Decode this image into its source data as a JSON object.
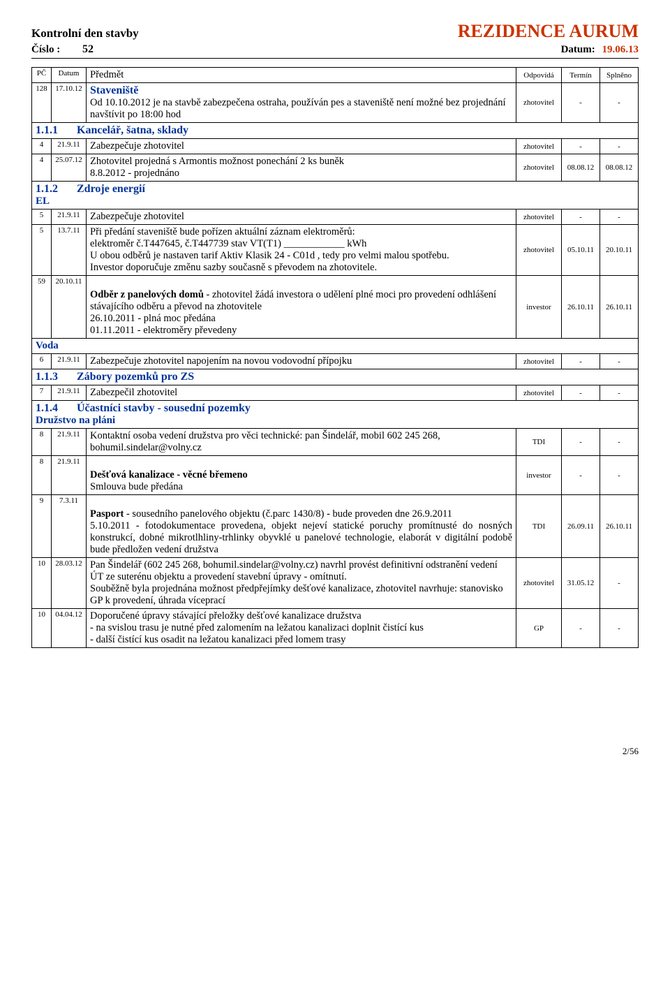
{
  "header": {
    "title_left": "Kontrolní den stavby",
    "title_right": "REZIDENCE AURUM",
    "cislo_label": "Číslo :",
    "cislo": "52",
    "datum_label": "Datum:",
    "datum": "19.06.13"
  },
  "colors": {
    "accent": "#cc3300",
    "section": "#003399"
  },
  "th": {
    "pc": "PČ",
    "datum": "Datum",
    "predmet": "Předmět",
    "odpovida": "Odpovídá",
    "termin": "Termín",
    "splneno": "Splněno"
  },
  "sections": {
    "staveniste": "Staveniště",
    "s111": "Kancelář, šatna, sklady",
    "s111_num": "1.1.1",
    "s112": "Zdroje energií",
    "s112_num": "1.1.2",
    "el": "EL",
    "voda": "Voda",
    "s113": "Zábory pozemků pro ZS",
    "s113_num": "1.1.3",
    "s114": "Účastníci stavby - sousední pozemky",
    "s114_num": "1.1.4",
    "druzstvo": "Družstvo na pláni"
  },
  "rows": {
    "r128": {
      "pc": "128",
      "datum": "17.10.12",
      "text": "Od 10.10.2012 je na stavbě zabezpečena ostraha, používán pes a staveniště není možné bez projednání navštívit po 18:00 hod",
      "odp": "zhotovitel",
      "term": "-",
      "spl": "-"
    },
    "r4a": {
      "pc": "4",
      "datum": "21.9.11",
      "text": "Zabezpečuje zhotovitel",
      "odp": "zhotovitel",
      "term": "-",
      "spl": "-"
    },
    "r4b": {
      "pc": "4",
      "datum": "25.07.12",
      "text": "Zhotovitel projedná s Armontis možnost ponechání 2 ks buněk\n8.8.2012 - projednáno",
      "odp": "zhotovitel",
      "term": "08.08.12",
      "spl": "08.08.12"
    },
    "r5a": {
      "pc": "5",
      "datum": "21.9.11",
      "text": "Zabezpečuje zhotovitel",
      "odp": "zhotovitel",
      "term": "-",
      "spl": "-"
    },
    "r5b": {
      "pc": "5",
      "datum": "13.7.11",
      "text": "Při předání staveniště bude pořízen aktuální záznam elektroměrů:\nelektroměr č.T447645, č.T447739       stav VT(T1) ____________ kWh\nU obou odběrů je nastaven tarif Aktiv Klasik 24 - C01d , tedy pro velmi malou spotřebu.\nInvestor doporučuje změnu sazby současně s převodem na zhotovitele.",
      "odp": "zhotovitel",
      "term": "05.10.11",
      "spl": "20.10.11"
    },
    "r59": {
      "pc": "59",
      "datum": "20.10.11",
      "text_bold": "Odběr z panelových domů",
      "text_rest": " - zhotovitel žádá investora o udělení plné moci pro provedení odhlášení stávajícího odběru a převod na zhotovitele\n26.10.2011 - plná moc předána\n01.11.2011 - elektroměry převedeny",
      "odp": "investor",
      "term": "26.10.11",
      "spl": "26.10.11"
    },
    "r6": {
      "pc": "6",
      "datum": "21.9.11",
      "text": "Zabezpečuje zhotovitel napojením na novou vodovodní přípojku",
      "odp": "zhotovitel",
      "term": "-",
      "spl": "-"
    },
    "r7": {
      "pc": "7",
      "datum": "21.9.11",
      "text": "Zabezpečil zhotovitel",
      "odp": "zhotovitel",
      "term": "-",
      "spl": "-"
    },
    "r8a": {
      "pc": "8",
      "datum": "21.9.11",
      "text": "Kontaktní osoba vedení družstva pro věci technické:  pan Šindelář, mobil 602 245 268, bohumil.sindelar@volny.cz",
      "odp": "TDI",
      "term": "-",
      "spl": "-"
    },
    "r8b": {
      "pc": "8",
      "datum": "21.9.11",
      "text_bold": "Dešťová kanalizace - věcné břemeno",
      "text_rest": "\nSmlouva bude předána",
      "odp": "investor",
      "term": "-",
      "spl": "-"
    },
    "r9": {
      "pc": "9",
      "datum": "7.3.11",
      "text_bold": "Pasport",
      "text_rest": " - sousedního panelového objektu (č.parc 1430/8) - bude proveden dne 26.9.2011\n5.10.2011 - fotodokumentace provedena, objekt nejeví statické poruchy promítnusté do nosných konstrukcí, dobné mikrotlhliny-trhlinky obyvklé u panelové technologie, elaborát v digitální podobě bude předložen vedení družstva",
      "odp": "TDI",
      "term": "26.09.11",
      "spl": "26.10.11"
    },
    "r10a": {
      "pc": "10",
      "datum": "28.03.12",
      "text": "Pan Šindelář (602 245 268, bohumil.sindelar@volny.cz) navrhl provést definitivní odstranění vedení ÚT ze suterénu objektu a provedení stavební úpravy - omítnutí.\nSouběžně byla projednána možnost předpřejímky dešťové kanalizace, zhotovitel navrhuje:  stanovisko GP k provedení, úhrada víceprací",
      "odp": "zhotovitel",
      "term": "31.05.12",
      "spl": "-"
    },
    "r10b": {
      "pc": "10",
      "datum": "04.04.12",
      "text": "Doporučené úpravy stávající přeložky dešťové kanalizace družstva\n- na svislou trasu je nutné před zalomením na ležatou kanalizaci doplnit čistící kus\n- další čistící kus osadit na ležatou kanalizaci před lomem trasy",
      "odp": "GP",
      "term": "-",
      "spl": "-"
    }
  },
  "footer": "2/56"
}
